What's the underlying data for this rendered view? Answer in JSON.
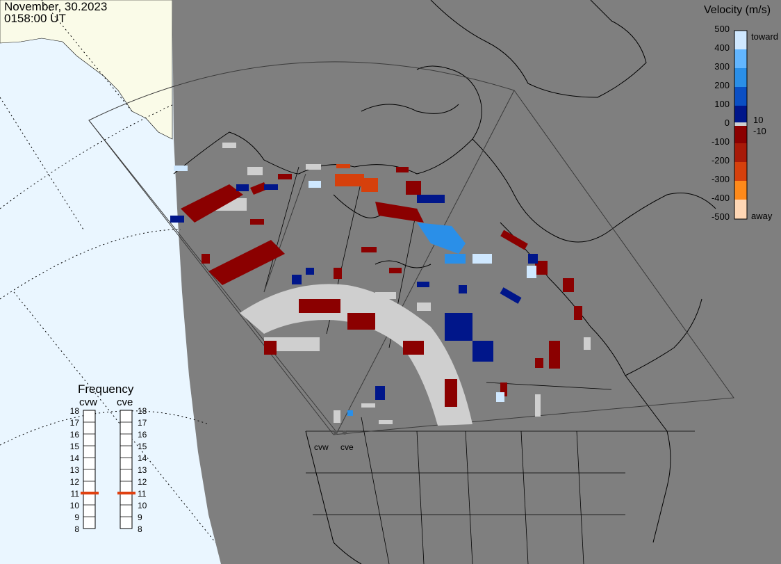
{
  "header": {
    "date": "November, 30.2023",
    "time": "0158:00 UT"
  },
  "colorbar": {
    "title": "Velocity (m/s)",
    "ticks": [
      "500",
      "400",
      "300",
      "200",
      "100",
      "0",
      "-100",
      "-200",
      "-300",
      "-400",
      "-500"
    ],
    "toward_label": "toward",
    "away_label": "away",
    "threshold_pos": "10",
    "threshold_neg": "-10",
    "colors": {
      "toward_light": "#cfe8ff",
      "toward_mid": "#2a8fe8",
      "toward_dark": "#00168a",
      "away_dark": "#8b0000",
      "away_mid": "#d6400c",
      "away_light": "#ffd7b5",
      "ground_scatter": "#cfcfcf"
    }
  },
  "frequency_panel": {
    "title": "Frequency",
    "radars": [
      {
        "name": "cvw",
        "frequency_mhz": 10.8
      },
      {
        "name": "cve",
        "frequency_mhz": 10.8
      }
    ],
    "scale": [
      "18",
      "17",
      "16",
      "15",
      "14",
      "13",
      "12",
      "11",
      "10",
      "9",
      "8"
    ],
    "indicator_color": "#e04010"
  },
  "sites": [
    {
      "name": "cvw"
    },
    {
      "name": "cve"
    }
  ],
  "map_colors": {
    "land_dark": "#7f7f7f",
    "land_day": "#fafbe8",
    "ocean": "#eaf6ff",
    "coastline": "#000000"
  }
}
